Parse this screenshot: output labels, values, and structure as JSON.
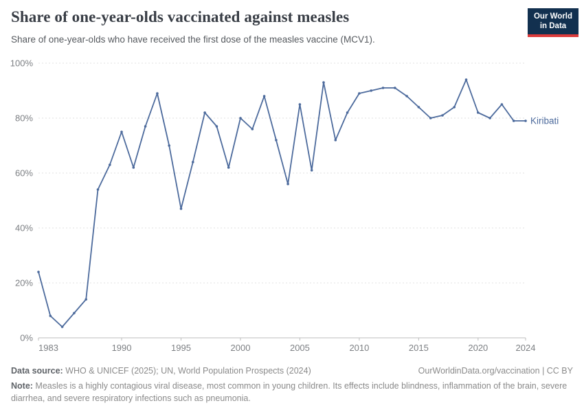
{
  "header": {
    "title": "Share of one-year-olds vaccinated against measles",
    "subtitle": "Share of one-year-olds who have received the first dose of the measles vaccine (MCV1).",
    "logo": {
      "line1": "Our World",
      "line2": "in Data"
    }
  },
  "chart_data": {
    "type": "line",
    "title": "Share of one-year-olds vaccinated against measles",
    "subtitle": "Share of one-year-olds who have received the first dose of the measles vaccine (MCV1).",
    "x": [
      1983,
      1984,
      1985,
      1986,
      1987,
      1988,
      1989,
      1990,
      1991,
      1992,
      1993,
      1994,
      1995,
      1996,
      1997,
      1998,
      1999,
      2000,
      2001,
      2002,
      2003,
      2004,
      2005,
      2006,
      2007,
      2008,
      2009,
      2010,
      2011,
      2012,
      2013,
      2014,
      2015,
      2016,
      2017,
      2018,
      2019,
      2020,
      2021,
      2022,
      2023,
      2024
    ],
    "series": [
      {
        "name": "Kiribati",
        "values": [
          24,
          8,
          4,
          9,
          14,
          54,
          63,
          75,
          62,
          77,
          89,
          70,
          47,
          64,
          82,
          77,
          62,
          80,
          76,
          88,
          72,
          56,
          85,
          61,
          93,
          72,
          82,
          89,
          90,
          91,
          91,
          88,
          84,
          80,
          81,
          84,
          94,
          82,
          80,
          85,
          79,
          79
        ]
      }
    ],
    "xlabel": "",
    "ylabel": "",
    "ylim": [
      0,
      100
    ],
    "yticks": [
      0,
      20,
      40,
      60,
      80,
      100
    ],
    "ytick_suffix": "%",
    "xticks": [
      1983,
      1990,
      1995,
      2000,
      2005,
      2010,
      2015,
      2020,
      2024
    ],
    "grid": "horizontal-dashed",
    "legend_position": "end-of-line-label",
    "colors": {
      "line": "#4C6A9C",
      "gridline": "#e0e0e0",
      "axis": "#bdbdbd",
      "tick_label": "#7c7f83"
    }
  },
  "footer": {
    "datasource_label": "Data source:",
    "datasource_text": " WHO & UNICEF (2025); UN, World Population Prospects (2024)",
    "link_text": "OurWorldinData.org/vaccination | CC BY",
    "note_label": "Note:",
    "note_text": " Measles is a highly contagious viral disease, most common in young children. Its effects include blindness, inflammation of the brain, severe diarrhea, and severe respiratory infections such as pneumonia."
  }
}
